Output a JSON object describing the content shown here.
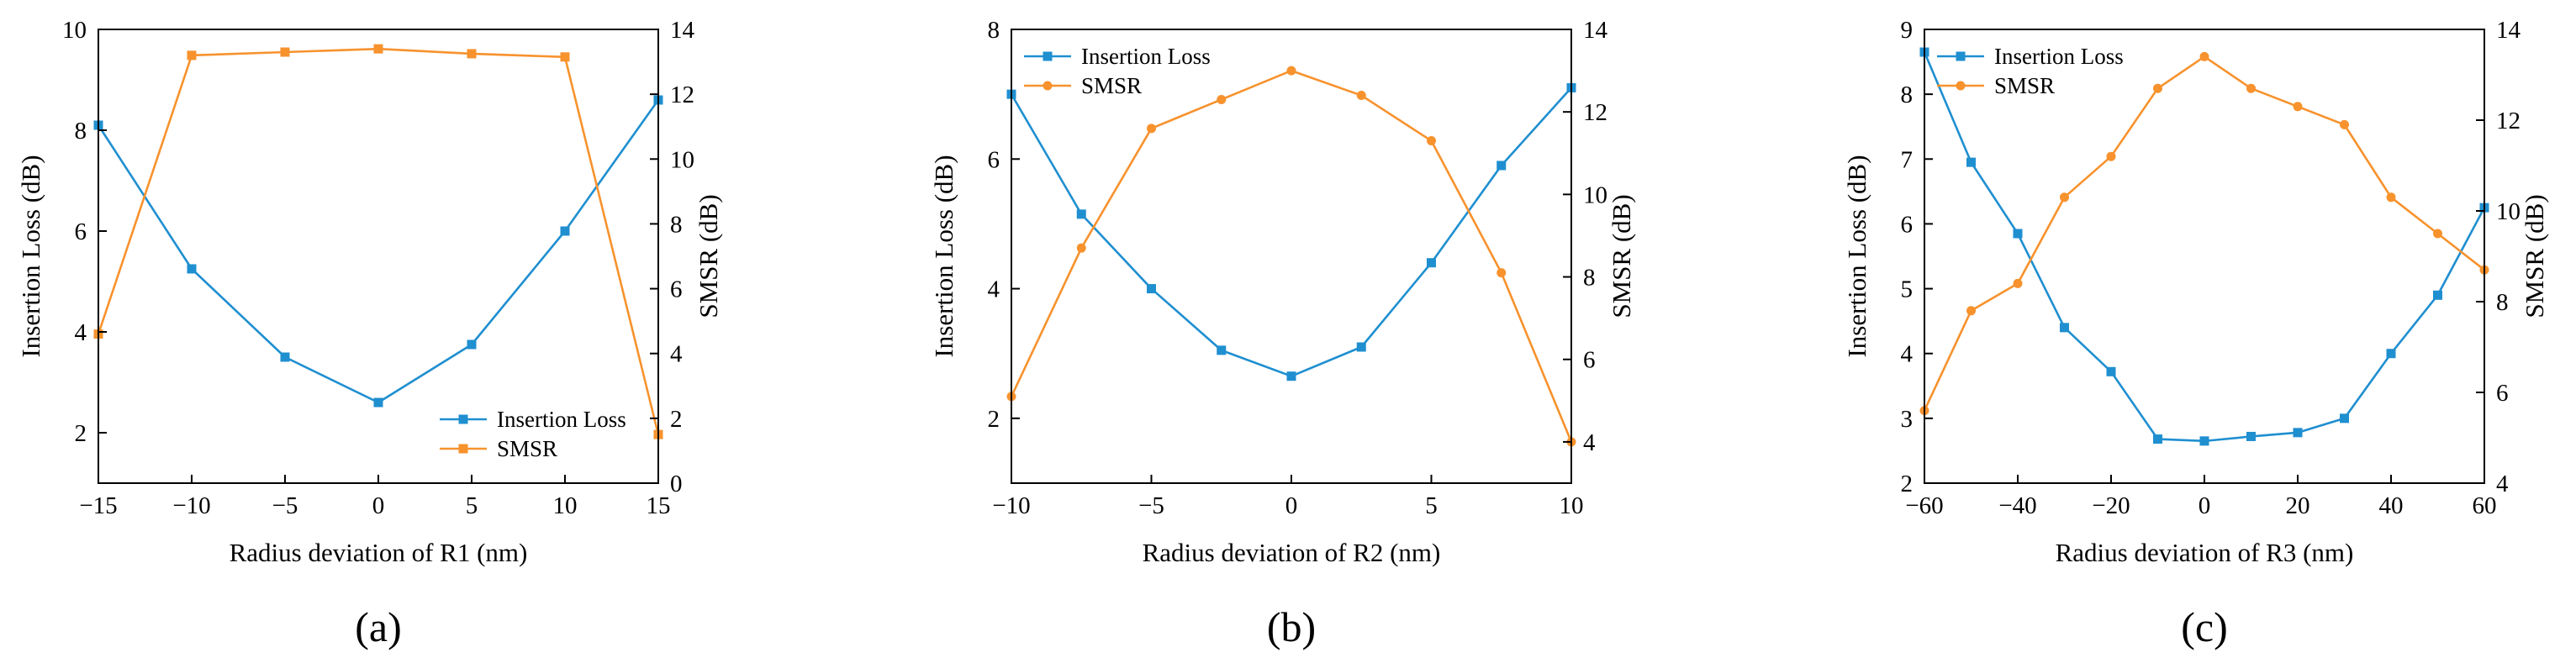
{
  "colors": {
    "insertion_loss": "#1f8fd0",
    "smsr": "#f7922d"
  },
  "chart_data": [
    {
      "type": "line",
      "panel_label": "(a)",
      "xlabel": "Radius deviation of R1 (nm)",
      "ylabel_left": "Insertion Loss (dB)",
      "ylabel_right": "SMSR (dB)",
      "xlim": [
        -15,
        15
      ],
      "ylim_left": [
        1,
        10
      ],
      "ylim_right": [
        0,
        14
      ],
      "xticks": [
        -15,
        -10,
        -5,
        0,
        5,
        10,
        15
      ],
      "xtick_labels": [
        "−15",
        "−10",
        "−5",
        "0",
        "5",
        "10",
        "15"
      ],
      "yticks_left": [
        2,
        4,
        6,
        8,
        10
      ],
      "yticks_right": [
        0,
        2,
        4,
        6,
        8,
        10,
        12,
        14
      ],
      "legend": {
        "position": "lower-right",
        "entries": [
          "Insertion Loss",
          "SMSR"
        ]
      },
      "series": [
        {
          "name": "Insertion Loss",
          "axis": "left",
          "marker": "square",
          "x": [
            -15,
            -10,
            -5,
            0,
            5,
            10,
            15
          ],
          "y": [
            8.1,
            5.25,
            3.5,
            2.6,
            3.75,
            6.0,
            8.6
          ]
        },
        {
          "name": "SMSR",
          "axis": "right",
          "marker": "square",
          "x": [
            -15,
            -10,
            -5,
            0,
            5,
            10,
            15
          ],
          "y": [
            4.6,
            13.2,
            13.3,
            13.4,
            13.25,
            13.15,
            1.5
          ]
        }
      ]
    },
    {
      "type": "line",
      "panel_label": "(b)",
      "xlabel": "Radius deviation of R2 (nm)",
      "ylabel_left": "Insertion Loss (dB)",
      "ylabel_right": "SMSR (dB)",
      "xlim": [
        -10,
        10
      ],
      "ylim_left": [
        1,
        8
      ],
      "ylim_right": [
        3,
        14
      ],
      "xticks": [
        -10,
        -5,
        0,
        5,
        10
      ],
      "xtick_labels": [
        "−10",
        "−5",
        "0",
        "5",
        "10"
      ],
      "yticks_left": [
        2,
        4,
        6,
        8
      ],
      "yticks_right": [
        4,
        6,
        8,
        10,
        12,
        14
      ],
      "legend": {
        "position": "top-left",
        "entries": [
          "Insertion Loss",
          "SMSR"
        ]
      },
      "series": [
        {
          "name": "Insertion Loss",
          "axis": "left",
          "marker": "square",
          "x": [
            -10,
            -7.5,
            -5,
            -2.5,
            0,
            2.5,
            5,
            7.5,
            10
          ],
          "y": [
            7.0,
            5.15,
            4.0,
            3.05,
            2.65,
            3.1,
            4.4,
            5.9,
            7.1
          ]
        },
        {
          "name": "SMSR",
          "axis": "right",
          "marker": "circle",
          "x": [
            -10,
            -7.5,
            -5,
            -2.5,
            0,
            2.5,
            5,
            7.5,
            10
          ],
          "y": [
            5.1,
            8.7,
            11.6,
            12.3,
            13.0,
            12.4,
            11.3,
            8.1,
            4.0
          ]
        }
      ]
    },
    {
      "type": "line",
      "panel_label": "(c)",
      "xlabel": "Radius deviation of R3 (nm)",
      "ylabel_left": "Insertion Loss (dB)",
      "ylabel_right": "SMSR (dB)",
      "xlim": [
        -60,
        60
      ],
      "ylim_left": [
        2,
        9
      ],
      "ylim_right": [
        4,
        14
      ],
      "xticks": [
        -60,
        -40,
        -20,
        0,
        20,
        40,
        60
      ],
      "xtick_labels": [
        "−60",
        "−40",
        "−20",
        "0",
        "20",
        "40",
        "60"
      ],
      "yticks_left": [
        2,
        3,
        4,
        5,
        6,
        7,
        8,
        9
      ],
      "yticks_right": [
        4,
        6,
        8,
        10,
        12,
        14
      ],
      "legend": {
        "position": "top-left",
        "entries": [
          "Insertion Loss",
          "SMSR"
        ]
      },
      "series": [
        {
          "name": "Insertion Loss",
          "axis": "left",
          "marker": "square",
          "x": [
            -60,
            -50,
            -40,
            -30,
            -20,
            -10,
            0,
            10,
            20,
            30,
            40,
            50,
            60
          ],
          "y": [
            8.65,
            6.95,
            5.85,
            4.4,
            3.72,
            2.68,
            2.65,
            2.72,
            2.78,
            3.0,
            4.0,
            4.9,
            6.25
          ]
        },
        {
          "name": "SMSR",
          "axis": "right",
          "marker": "circle",
          "x": [
            -60,
            -50,
            -40,
            -30,
            -20,
            -10,
            0,
            10,
            20,
            30,
            40,
            50,
            60
          ],
          "y": [
            5.6,
            7.8,
            8.4,
            10.3,
            11.2,
            12.7,
            13.4,
            12.7,
            12.3,
            11.9,
            10.3,
            9.5,
            8.7
          ]
        }
      ]
    }
  ]
}
